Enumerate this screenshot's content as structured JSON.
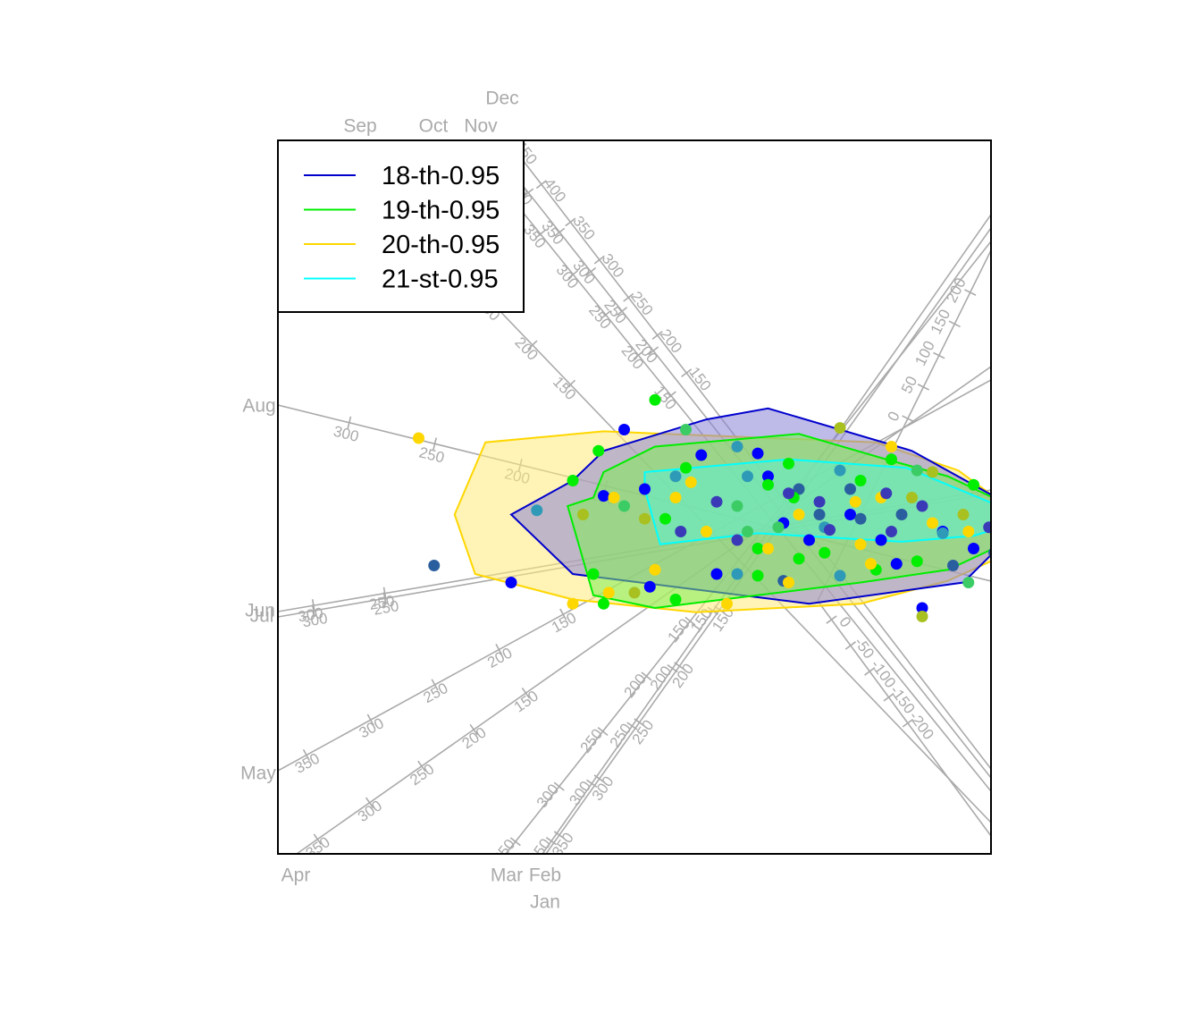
{
  "chart_data": {
    "type": "scatter",
    "subtype": "biplot with alpha-bag hulls",
    "title": "",
    "xlabel": "",
    "ylabel": "",
    "legend": {
      "position": "top-left",
      "entries": [
        {
          "label": "18-th-0.95",
          "color": "#0000cd"
        },
        {
          "label": "19-th-0.95",
          "color": "#00ee00"
        },
        {
          "label": "20-th-0.95",
          "color": "#ffd700"
        },
        {
          "label": "21-st-0.95",
          "color": "#00ffff"
        }
      ]
    },
    "hull_fill_colors": {
      "18-th-0.95": "#8a84d6",
      "19-th-0.95": "#7fee55",
      "20-th-0.95": "#ffe97a",
      "21-st-0.95": "#5ff0d0"
    },
    "point_colors": [
      "#0000ff",
      "#00ee00",
      "#ffd700",
      "#3a3ab8",
      "#2e9ab8",
      "#3ccc66",
      "#a8c020",
      "#2a5f9f"
    ],
    "variable_axes": [
      {
        "name": "Jan",
        "ticks": [
          "350",
          "300",
          "250",
          "200",
          "150"
        ]
      },
      {
        "name": "Feb",
        "ticks": [
          "350",
          "300",
          "250",
          "200",
          "150"
        ]
      },
      {
        "name": "Mar",
        "ticks": [
          "350",
          "300",
          "250",
          "200",
          "150"
        ]
      },
      {
        "name": "Apr",
        "ticks": [
          "350",
          "300",
          "250",
          "200",
          "150"
        ]
      },
      {
        "name": "May",
        "ticks": [
          "350",
          "300",
          "250",
          "200",
          "150"
        ]
      },
      {
        "name": "Jun",
        "ticks": [
          "300",
          "250"
        ]
      },
      {
        "name": "Jul",
        "ticks": [
          "300",
          "250"
        ]
      },
      {
        "name": "Aug",
        "ticks": [
          "300",
          "250",
          "200",
          "150"
        ]
      },
      {
        "name": "Sep",
        "ticks": [
          "450",
          "400",
          "350",
          "300",
          "250",
          "200",
          "150"
        ]
      },
      {
        "name": "Oct",
        "ticks": [
          "450",
          "400",
          "350",
          "300",
          "250",
          "200",
          "150"
        ]
      },
      {
        "name": "Nov",
        "ticks": [
          "450",
          "400",
          "350",
          "300",
          "250",
          "200"
        ]
      },
      {
        "name": "Dec",
        "ticks": [
          "450",
          "400",
          "350",
          "300",
          "250",
          "200",
          "150"
        ]
      },
      {
        "name": "",
        "ticks": [
          "200",
          "150",
          "100",
          "50",
          "0",
          "-50",
          "-100",
          "-150",
          "-200"
        ]
      }
    ],
    "series": [
      {
        "name": "18-th-0.95",
        "hull": [
          [
            -2.2,
            0.1
          ],
          [
            -1.6,
            0.5
          ],
          [
            -1.3,
            0.85
          ],
          [
            -0.3,
            1.22
          ],
          [
            0.3,
            1.35
          ],
          [
            1.7,
            0.85
          ],
          [
            2.85,
            0.08
          ],
          [
            2.2,
            -0.7
          ],
          [
            0.7,
            -0.95
          ],
          [
            -1.6,
            -0.6
          ]
        ],
        "points": [
          [
            -1.1,
            1.1
          ],
          [
            -0.5,
            1.1
          ],
          [
            -1.3,
            0.32
          ],
          [
            -0.9,
            0.4
          ],
          [
            -0.6,
            0.55
          ],
          [
            -0.35,
            0.8
          ],
          [
            0.2,
            0.82
          ],
          [
            0.6,
            0.4
          ],
          [
            1.1,
            0.1
          ],
          [
            1.4,
            -0.2
          ],
          [
            1.7,
            0.3
          ],
          [
            2.0,
            -0.1
          ],
          [
            2.3,
            -0.3
          ],
          [
            0.1,
            -0.1
          ],
          [
            0.7,
            -0.2
          ],
          [
            1.55,
            -0.48
          ],
          [
            1.0,
            0.62
          ],
          [
            0.45,
            0.0
          ],
          [
            -0.2,
            -0.6
          ],
          [
            0.45,
            -0.68
          ],
          [
            -2.2,
            -0.7
          ],
          [
            -0.85,
            -0.75
          ],
          [
            -1.5,
            0.1
          ],
          [
            0.3,
            0.55
          ],
          [
            1.8,
            -1.0
          ]
        ]
      },
      {
        "name": "19-th-0.95",
        "hull": [
          [
            -1.4,
            0.3
          ],
          [
            -1.3,
            0.6
          ],
          [
            -0.8,
            0.9
          ],
          [
            0.6,
            1.05
          ],
          [
            1.45,
            0.75
          ],
          [
            2.05,
            0.55
          ],
          [
            2.75,
            0.15
          ],
          [
            2.85,
            -0.1
          ],
          [
            2.05,
            -0.55
          ],
          [
            1.2,
            -0.7
          ],
          [
            -0.8,
            -1.0
          ],
          [
            -1.4,
            -0.85
          ],
          [
            -1.65,
            0.2
          ]
        ],
        "points": [
          [
            -0.8,
            1.45
          ],
          [
            1.0,
            1.12
          ],
          [
            -1.6,
            0.5
          ],
          [
            -1.35,
            0.85
          ],
          [
            -1.1,
            0.2
          ],
          [
            -0.7,
            0.05
          ],
          [
            -0.5,
            0.65
          ],
          [
            0.0,
            0.9
          ],
          [
            0.3,
            0.45
          ],
          [
            0.55,
            0.3
          ],
          [
            0.8,
            0.1
          ],
          [
            1.2,
            0.5
          ],
          [
            1.5,
            0.75
          ],
          [
            1.9,
            0.6
          ],
          [
            2.3,
            0.45
          ],
          [
            2.6,
            0.25
          ],
          [
            2.8,
            0.2
          ],
          [
            0.2,
            -0.3
          ],
          [
            0.6,
            -0.42
          ],
          [
            1.0,
            -0.62
          ],
          [
            1.35,
            -0.55
          ],
          [
            1.75,
            -0.45
          ],
          [
            2.1,
            -0.5
          ],
          [
            -0.6,
            -0.9
          ],
          [
            -1.4,
            -0.6
          ],
          [
            -1.0,
            -0.82
          ],
          [
            0.2,
            -0.62
          ],
          [
            0.85,
            -0.35
          ],
          [
            2.25,
            -0.7
          ],
          [
            -1.3,
            -0.95
          ],
          [
            0.5,
            0.7
          ],
          [
            -1.95,
            0.15
          ]
        ]
      },
      {
        "name": "20-th-0.95",
        "hull": [
          [
            -2.55,
            -0.6
          ],
          [
            -2.75,
            0.1
          ],
          [
            -2.45,
            0.95
          ],
          [
            -1.3,
            1.08
          ],
          [
            1.35,
            0.95
          ],
          [
            2.15,
            0.62
          ],
          [
            2.85,
            0.0
          ],
          [
            2.65,
            -0.35
          ],
          [
            2.05,
            -0.68
          ],
          [
            1.2,
            -0.95
          ],
          [
            -0.4,
            -1.05
          ],
          [
            -1.6,
            -0.9
          ]
        ],
        "points": [
          [
            -3.1,
            1.0
          ],
          [
            -2.95,
            -0.5
          ],
          [
            -1.6,
            -0.95
          ],
          [
            -1.2,
            0.3
          ],
          [
            -0.9,
            0.05
          ],
          [
            -0.6,
            0.3
          ],
          [
            -0.3,
            -0.1
          ],
          [
            0.0,
            0.2
          ],
          [
            0.3,
            -0.3
          ],
          [
            0.6,
            0.1
          ],
          [
            0.85,
            -0.05
          ],
          [
            1.2,
            -0.25
          ],
          [
            1.4,
            0.3
          ],
          [
            1.6,
            0.1
          ],
          [
            1.9,
            0.0
          ],
          [
            2.25,
            -0.1
          ],
          [
            2.6,
            0.05
          ],
          [
            2.8,
            -0.2
          ],
          [
            1.5,
            0.9
          ],
          [
            1.75,
            0.62
          ],
          [
            -0.8,
            -0.55
          ],
          [
            -1.25,
            -0.82
          ],
          [
            0.0,
            -0.6
          ],
          [
            0.5,
            -0.7
          ],
          [
            1.3,
            -0.48
          ],
          [
            2.5,
            -0.35
          ],
          [
            -0.45,
            0.48
          ],
          [
            1.15,
            0.25
          ],
          [
            1.8,
            -1.1
          ],
          [
            -0.1,
            -0.95
          ]
        ]
      },
      {
        "name": "21-st-0.95",
        "hull": [
          [
            -0.9,
            0.6
          ],
          [
            0.5,
            0.75
          ],
          [
            1.65,
            0.65
          ],
          [
            2.85,
            0.05
          ],
          [
            2.3,
            -0.15
          ],
          [
            1.6,
            -0.22
          ],
          [
            0.2,
            -0.12
          ],
          [
            -0.75,
            -0.25
          ],
          [
            -0.9,
            0.4
          ]
        ],
        "points": [
          [
            -0.2,
            0.25
          ],
          [
            0.1,
            0.55
          ],
          [
            0.5,
            0.35
          ],
          [
            0.8,
            0.25
          ],
          [
            1.1,
            0.4
          ],
          [
            1.45,
            0.35
          ],
          [
            1.8,
            0.2
          ],
          [
            2.2,
            0.1
          ],
          [
            2.6,
            0.1
          ],
          [
            2.85,
            0.05
          ],
          [
            0.4,
            -0.05
          ],
          [
            0.9,
            -0.08
          ],
          [
            1.5,
            -0.1
          ],
          [
            2.0,
            -0.12
          ],
          [
            2.45,
            -0.05
          ],
          [
            -0.55,
            -0.1
          ],
          [
            1.2,
            0.05
          ],
          [
            0.0,
            -0.2
          ]
        ]
      }
    ]
  }
}
